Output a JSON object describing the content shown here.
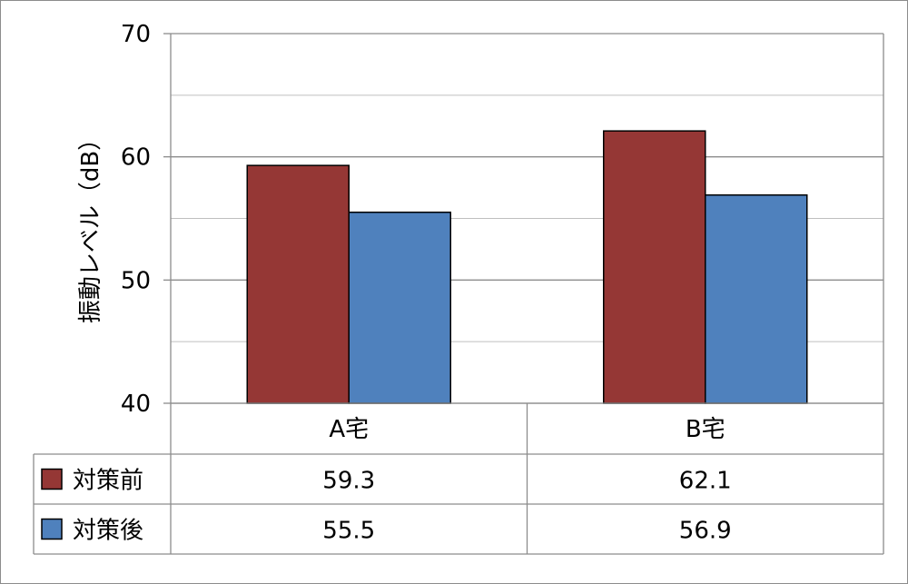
{
  "chart_data": {
    "type": "bar",
    "categories": [
      "A宅",
      "B宅"
    ],
    "series": [
      {
        "name": "対策前",
        "values": [
          59.3,
          62.1
        ],
        "color": "#953735"
      },
      {
        "name": "対策後",
        "values": [
          55.5,
          56.9
        ],
        "color": "#4f81bd"
      }
    ],
    "ylabel": "振動レベル（dB）",
    "ylim": [
      40,
      70
    ],
    "yticks": [
      40,
      50,
      60,
      70
    ],
    "grid": true,
    "data_table": true,
    "table_rows": [
      {
        "label": "対策前",
        "cells": [
          "59.3",
          "62.1"
        ]
      },
      {
        "label": "対策後",
        "cells": [
          "55.5",
          "56.9"
        ]
      }
    ]
  }
}
